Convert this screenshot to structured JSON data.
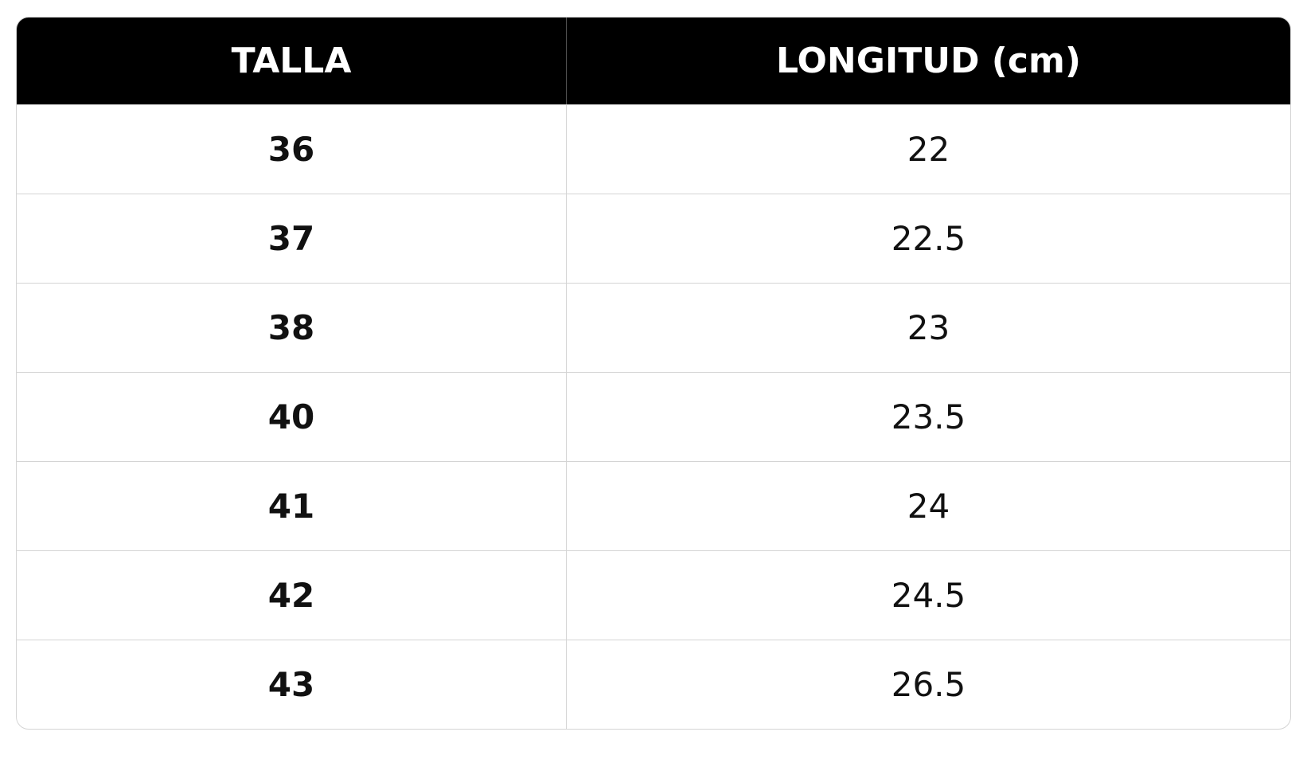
{
  "table": {
    "headers": [
      "TALLA",
      "LONGITUD (cm)"
    ],
    "rows": [
      [
        "36",
        "22"
      ],
      [
        "37",
        "22.5"
      ],
      [
        "38",
        "23"
      ],
      [
        "40",
        "23.5"
      ],
      [
        "41",
        "24"
      ],
      [
        "42",
        "24.5"
      ],
      [
        "43",
        "26.5"
      ]
    ]
  }
}
